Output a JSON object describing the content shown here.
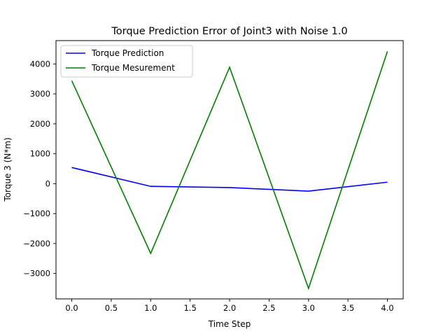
{
  "chart_data": {
    "type": "line",
    "title": "Torque Prediction Error of Joint3 with Noise 1.0",
    "xlabel": "Time Step",
    "ylabel": "Torque 3 (N*m)",
    "x": [
      0,
      1,
      2,
      3,
      4
    ],
    "xlim": [
      -0.2,
      4.2
    ],
    "ylim": [
      -3850,
      4780
    ],
    "xticks": [
      "0.0",
      "0.5",
      "1.0",
      "1.5",
      "2.0",
      "2.5",
      "3.0",
      "3.5",
      "4.0"
    ],
    "yticks": [
      "−3000",
      "−2000",
      "−1000",
      "0",
      "1000",
      "2000",
      "3000",
      "4000"
    ],
    "grid": false,
    "legend_position": "top-left",
    "series": [
      {
        "name": "Torque Prediction",
        "color": "#0000ff",
        "values": [
          540,
          -90,
          -130,
          -250,
          50
        ]
      },
      {
        "name": "Torque Mesurement",
        "color": "#008000",
        "values": [
          3440,
          -2330,
          3890,
          -3500,
          4420
        ]
      }
    ]
  }
}
